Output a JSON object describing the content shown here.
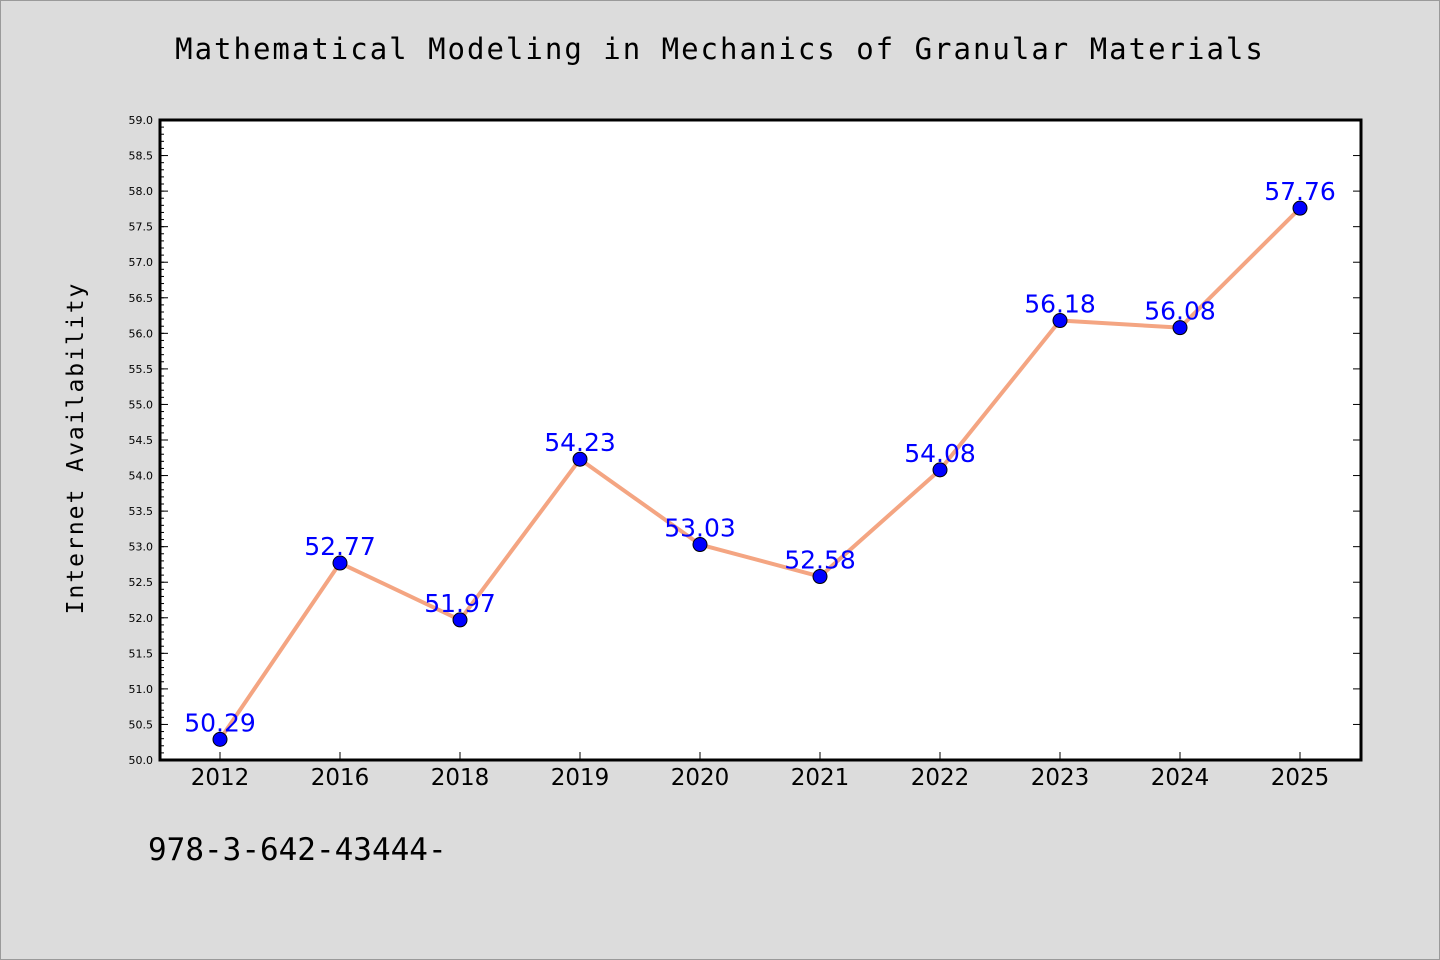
{
  "chart_data": {
    "type": "line",
    "title": "Mathematical Modeling in Mechanics of Granular Materials",
    "xlabel": "",
    "ylabel": "Internet Availability",
    "categories": [
      "2012",
      "2016",
      "2018",
      "2019",
      "2020",
      "2021",
      "2022",
      "2023",
      "2024",
      "2025"
    ],
    "series": [
      {
        "values": [
          50.29,
          52.77,
          51.97,
          54.23,
          53.03,
          52.58,
          54.08,
          56.18,
          56.08,
          57.76
        ]
      }
    ],
    "data_labels": [
      "50.29",
      "52.77",
      "51.97",
      "54.23",
      "53.03",
      "52.58",
      "54.08",
      "56.18",
      "56.08",
      "57.76"
    ],
    "ylim": [
      50.0,
      59.0
    ],
    "yticks": [
      "50.0",
      "50.5",
      "51.0",
      "51.5",
      "52.0",
      "52.5",
      "53.0",
      "53.5",
      "54.0",
      "54.5",
      "55.0",
      "55.5",
      "56.0",
      "56.5",
      "57.0",
      "57.5",
      "58.0",
      "58.5",
      "59.0"
    ],
    "grid": false,
    "line_color": "#f4a582",
    "marker_color": "#0000ff",
    "label_color": "#0000ff"
  },
  "footer": {
    "text": "978-3-642-43444-"
  }
}
